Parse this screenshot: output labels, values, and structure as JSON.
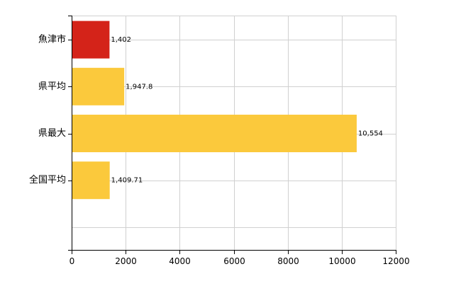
{
  "chart_data": {
    "type": "bar",
    "orientation": "horizontal",
    "categories": [
      "魚津市",
      "県平均",
      "県最大",
      "全国平均"
    ],
    "values": [
      1402,
      1947.8,
      10554,
      1409.71
    ],
    "data_labels": [
      "1,402",
      "1,947.8",
      "10,554",
      "1,409.71"
    ],
    "colors": [
      "#d42319",
      "#fbc93c",
      "#fbc93c",
      "#fbc93c"
    ],
    "xlim": [
      0,
      12000
    ],
    "xticks": [
      0,
      2000,
      4000,
      6000,
      8000,
      10000,
      12000
    ],
    "xtick_labels": [
      "0",
      "2000",
      "4000",
      "6000",
      "8000",
      "10000",
      "12000"
    ],
    "grid": true,
    "legend": "none",
    "title": "",
    "xlabel": "",
    "ylabel": ""
  }
}
